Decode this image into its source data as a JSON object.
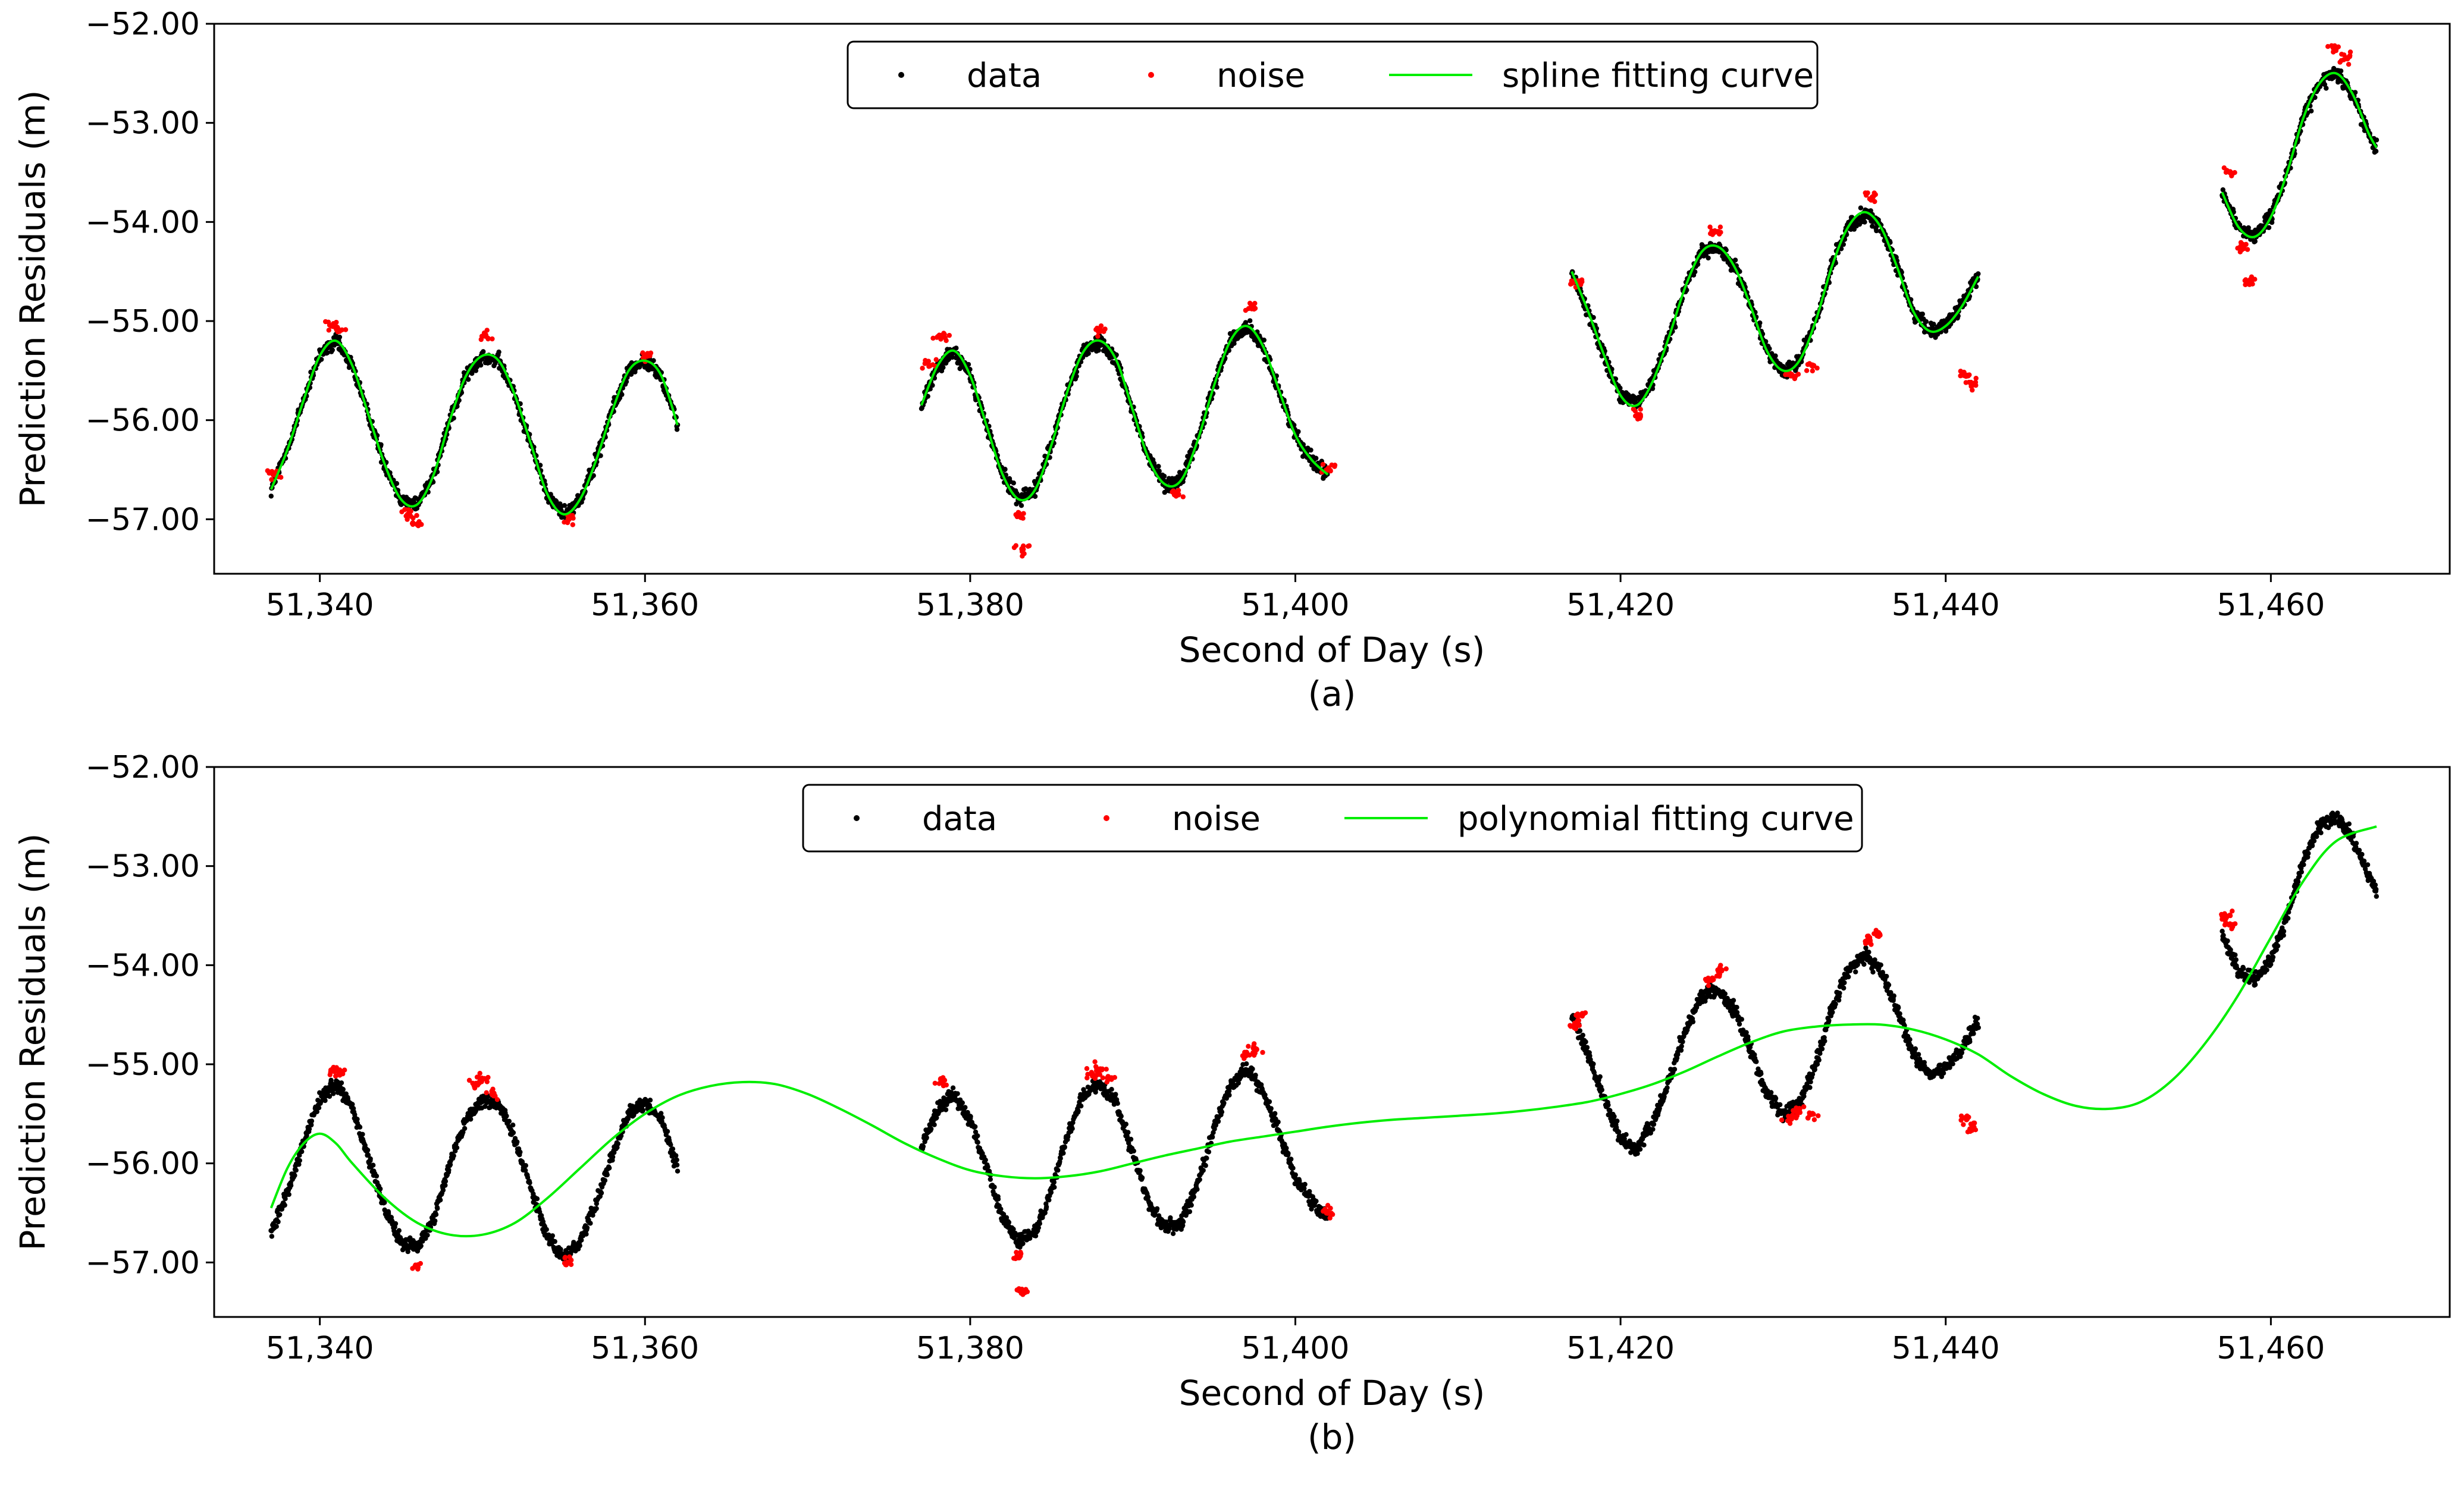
{
  "chart_data": [
    {
      "type": "scatter",
      "panel": "a",
      "caption": "(a)",
      "xlabel": "Second of Day (s)",
      "ylabel": "Prediction Residuals (m)",
      "xlim": [
        51333.5,
        51471
      ],
      "ylim": [
        -57.55,
        -52.0
      ],
      "xticks": [
        51340,
        51360,
        51380,
        51400,
        51420,
        51440,
        51460
      ],
      "xtick_labels": [
        "51,340",
        "51,360",
        "51,380",
        "51,400",
        "51,420",
        "51,440",
        "51,460"
      ],
      "yticks": [
        -52,
        -53,
        -54,
        -55,
        -56,
        -57
      ],
      "ytick_labels": [
        "−52.00",
        "−53.00",
        "−54.00",
        "−55.00",
        "−56.00",
        "−57.00"
      ],
      "legend": {
        "placement": "top-center",
        "entries": [
          {
            "label": "data",
            "marker": "dot",
            "color": "#000000"
          },
          {
            "label": "noise",
            "marker": "dot",
            "color": "#ff0000"
          },
          {
            "label": "spline fitting curve",
            "marker": "line",
            "color": "#00ee00"
          }
        ]
      },
      "series": [
        {
          "name": "data",
          "style": "band",
          "color": "#000000",
          "segments": [
            {
              "x": [
                51337,
                51338,
                51339,
                51340,
                51341,
                51342,
                51343,
                51344,
                51345,
                51346,
                51347,
                51348,
                51349,
                51350,
                51351,
                51352,
                51353,
                51354,
                51355,
                51356,
                51357,
                51358,
                51359,
                51360,
                51361,
                51362
              ],
              "y": [
                -56.7,
                -56.3,
                -55.8,
                -55.35,
                -55.2,
                -55.45,
                -55.95,
                -56.45,
                -56.8,
                -56.85,
                -56.55,
                -56.0,
                -55.55,
                -55.35,
                -55.4,
                -55.75,
                -56.25,
                -56.75,
                -56.95,
                -56.8,
                -56.4,
                -55.9,
                -55.5,
                -55.4,
                -55.55,
                -56.05
              ]
            },
            {
              "x": [
                51377,
                51378,
                51379,
                51380,
                51381,
                51382,
                51383,
                51384,
                51385,
                51386,
                51387,
                51388,
                51389,
                51390,
                51391,
                51392,
                51393,
                51394,
                51395,
                51396,
                51397,
                51398,
                51399,
                51400,
                51401,
                51402
              ],
              "y": [
                -55.85,
                -55.45,
                -55.3,
                -55.55,
                -56.05,
                -56.55,
                -56.8,
                -56.7,
                -56.25,
                -55.7,
                -55.3,
                -55.2,
                -55.4,
                -55.9,
                -56.4,
                -56.65,
                -56.6,
                -56.2,
                -55.65,
                -55.2,
                -55.05,
                -55.25,
                -55.7,
                -56.15,
                -56.4,
                -56.55
              ]
            },
            {
              "x": [
                51417,
                51418,
                51419,
                51420,
                51421,
                51422,
                51423,
                51424,
                51425,
                51426,
                51427,
                51428,
                51429,
                51430,
                51431,
                51432,
                51433,
                51434,
                51435,
                51436,
                51437,
                51438,
                51439,
                51440,
                51441,
                51442
              ],
              "y": [
                -54.5,
                -54.9,
                -55.35,
                -55.75,
                -55.85,
                -55.6,
                -55.15,
                -54.65,
                -54.3,
                -54.25,
                -54.45,
                -54.85,
                -55.3,
                -55.5,
                -55.4,
                -55.0,
                -54.45,
                -54.05,
                -53.9,
                -54.05,
                -54.45,
                -54.9,
                -55.1,
                -55.05,
                -54.85,
                -54.55
              ]
            },
            {
              "x": [
                51457,
                51458,
                51459,
                51460,
                51461,
                51462,
                51463,
                51464,
                51465,
                51466,
                51466.5
              ],
              "y": [
                -53.7,
                -54.05,
                -54.15,
                -53.95,
                -53.5,
                -52.95,
                -52.6,
                -52.5,
                -52.7,
                -53.1,
                -53.25
              ]
            }
          ]
        },
        {
          "name": "noise",
          "style": "points",
          "color": "#ff0000",
          "points": [
            [
              51337.2,
              -56.55
            ],
            [
              51340.8,
              -55.05
            ],
            [
              51341.2,
              -55.1
            ],
            [
              51345.5,
              -56.95
            ],
            [
              51346,
              -57.05
            ],
            [
              51350.2,
              -55.15
            ],
            [
              51355.3,
              -57.0
            ],
            [
              51360,
              -55.35
            ],
            [
              51377.5,
              -55.45
            ],
            [
              51378.2,
              -55.15
            ],
            [
              51383,
              -56.95
            ],
            [
              51383.2,
              -57.3
            ],
            [
              51388,
              -55.1
            ],
            [
              51392.8,
              -56.75
            ],
            [
              51397.4,
              -54.85
            ],
            [
              51402,
              -56.5
            ],
            [
              51417.2,
              -54.6
            ],
            [
              51421.2,
              -55.95
            ],
            [
              51426,
              -54.1
            ],
            [
              51430.5,
              -55.55
            ],
            [
              51431.8,
              -55.45
            ],
            [
              51435.5,
              -53.75
            ],
            [
              51441.3,
              -55.55
            ],
            [
              51441.6,
              -55.65
            ],
            [
              51457.5,
              -53.5
            ],
            [
              51458.2,
              -54.25
            ],
            [
              51458.6,
              -54.6
            ],
            [
              51464,
              -52.25
            ],
            [
              51464.7,
              -52.35
            ]
          ]
        },
        {
          "name": "spline fitting curve",
          "style": "line",
          "color": "#00ee00",
          "follows": "data"
        }
      ]
    },
    {
      "type": "scatter",
      "panel": "b",
      "caption": "(b)",
      "xlabel": "Second of Day (s)",
      "ylabel": "Prediction Residuals (m)",
      "xlim": [
        51333.5,
        51471
      ],
      "ylim": [
        -57.55,
        -52.0
      ],
      "xticks": [
        51340,
        51360,
        51380,
        51400,
        51420,
        51440,
        51460
      ],
      "xtick_labels": [
        "51,340",
        "51,360",
        "51,380",
        "51,400",
        "51,420",
        "51,440",
        "51,460"
      ],
      "yticks": [
        -52,
        -53,
        -54,
        -55,
        -56,
        -57
      ],
      "ytick_labels": [
        "−52.00",
        "−53.00",
        "−54.00",
        "−55.00",
        "−56.00",
        "−57.00"
      ],
      "legend": {
        "placement": "top-center",
        "entries": [
          {
            "label": "data",
            "marker": "dot",
            "color": "#000000"
          },
          {
            "label": "noise",
            "marker": "dot",
            "color": "#ff0000"
          },
          {
            "label": "polynomial fitting curve",
            "marker": "line",
            "color": "#00ee00"
          }
        ]
      },
      "series": [
        {
          "name": "data",
          "style": "band",
          "color": "#000000",
          "same_as_panel": "a"
        },
        {
          "name": "noise",
          "style": "points",
          "color": "#ff0000",
          "points": [
            [
              51340.8,
              -55.05
            ],
            [
              51341.2,
              -55.1
            ],
            [
              51346,
              -57.05
            ],
            [
              51349.5,
              -55.2
            ],
            [
              51350,
              -55.15
            ],
            [
              51350.6,
              -55.3
            ],
            [
              51355.3,
              -57.0
            ],
            [
              51378.2,
              -55.15
            ],
            [
              51383,
              -56.95
            ],
            [
              51383.2,
              -57.3
            ],
            [
              51387.5,
              -55.1
            ],
            [
              51388,
              -55.05
            ],
            [
              51388.5,
              -55.15
            ],
            [
              51397,
              -54.9
            ],
            [
              51397.6,
              -54.85
            ],
            [
              51402,
              -56.5
            ],
            [
              51417.2,
              -54.6
            ],
            [
              51417.6,
              -54.5
            ],
            [
              51425.6,
              -54.15
            ],
            [
              51426.2,
              -54.05
            ],
            [
              51430.5,
              -55.55
            ],
            [
              51431,
              -55.45
            ],
            [
              51431.8,
              -55.5
            ],
            [
              51435.2,
              -53.75
            ],
            [
              51435.8,
              -53.7
            ],
            [
              51441.3,
              -55.55
            ],
            [
              51441.6,
              -55.65
            ],
            [
              51457.2,
              -53.5
            ],
            [
              51457.6,
              -53.6
            ]
          ]
        },
        {
          "name": "polynomial fitting curve",
          "style": "line",
          "color": "#00ee00",
          "x": [
            51337,
            51338,
            51339,
            51340,
            51341,
            51342,
            51344,
            51346,
            51348,
            51350,
            51352,
            51354,
            51356,
            51358,
            51360,
            51362,
            51364,
            51366,
            51368,
            51370,
            51372,
            51374,
            51376,
            51378,
            51380,
            51382,
            51384,
            51386,
            51388,
            51390,
            51392,
            51394,
            51396,
            51398,
            51400,
            51402,
            51404,
            51406,
            51408,
            51410,
            51412,
            51414,
            51416,
            51418,
            51420,
            51422,
            51424,
            51426,
            51428,
            51430,
            51432,
            51434,
            51436,
            51438,
            51440,
            51442,
            51444,
            51446,
            51448,
            51450,
            51452,
            51454,
            51456,
            51458,
            51460,
            51462,
            51464,
            51466.5
          ],
          "y": [
            -56.45,
            -56.05,
            -55.8,
            -55.7,
            -55.8,
            -56.0,
            -56.35,
            -56.6,
            -56.72,
            -56.72,
            -56.6,
            -56.35,
            -56.05,
            -55.75,
            -55.5,
            -55.32,
            -55.22,
            -55.18,
            -55.2,
            -55.3,
            -55.45,
            -55.62,
            -55.8,
            -55.95,
            -56.07,
            -56.13,
            -56.15,
            -56.13,
            -56.08,
            -56.0,
            -55.92,
            -55.85,
            -55.78,
            -55.73,
            -55.68,
            -55.63,
            -55.59,
            -55.56,
            -55.54,
            -55.52,
            -55.5,
            -55.47,
            -55.43,
            -55.38,
            -55.3,
            -55.2,
            -55.07,
            -54.92,
            -54.78,
            -54.67,
            -54.62,
            -54.6,
            -54.6,
            -54.65,
            -54.75,
            -54.9,
            -55.12,
            -55.3,
            -55.42,
            -55.45,
            -55.38,
            -55.15,
            -54.78,
            -54.3,
            -53.72,
            -53.15,
            -52.75,
            -52.6
          ]
        }
      ]
    }
  ]
}
